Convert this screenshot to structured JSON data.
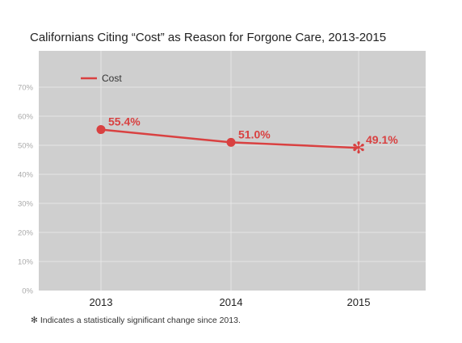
{
  "chart_data": {
    "type": "line",
    "title": "Californians Citing “Cost” as Reason for Forgone Care, 2013-2015",
    "xlabel": "",
    "ylabel": "",
    "categories": [
      "2013",
      "2014",
      "2015"
    ],
    "series": [
      {
        "name": "Cost",
        "values": [
          55.4,
          51.0,
          49.1
        ],
        "labels": [
          "55.4%",
          "51.0%",
          "49.1%"
        ],
        "significant": [
          false,
          false,
          true
        ]
      }
    ],
    "ylim": [
      0,
      70
    ],
    "yticks": [
      0,
      10,
      20,
      30,
      40,
      50,
      60,
      70
    ],
    "ytick_labels": [
      "0%",
      "10%",
      "20%",
      "30%",
      "40%",
      "50%",
      "60%",
      "70%"
    ],
    "grid": true,
    "legend_position": "top-left",
    "colors": {
      "line": "#d94141",
      "plot_background": "#cfcfcf",
      "grid": "#e6e6e6",
      "tick_text": "#aaaaaa"
    }
  },
  "footnote": {
    "marker": "✻",
    "text": "Indicates a statistically significant change since 2013."
  }
}
